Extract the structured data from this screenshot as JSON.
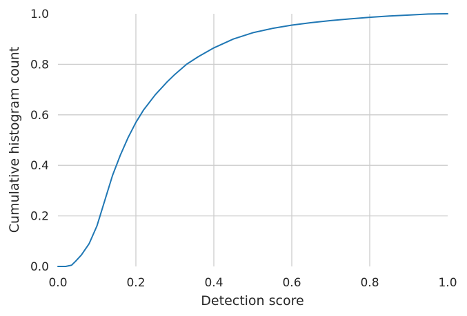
{
  "chart_data": {
    "type": "line",
    "xlabel": "Detection score",
    "ylabel": "Cumulative histogram count",
    "xlim": [
      0.0,
      1.0
    ],
    "ylim": [
      0.0,
      1.0
    ],
    "xticks": [
      0.0,
      0.2,
      0.4,
      0.6,
      0.8,
      1.0
    ],
    "yticks": [
      0.0,
      0.2,
      0.4,
      0.6,
      0.8,
      1.0
    ],
    "xtick_labels": [
      "0.0",
      "0.2",
      "0.4",
      "0.6",
      "0.8",
      "1.0"
    ],
    "ytick_labels": [
      "0.0",
      "0.2",
      "0.4",
      "0.6",
      "0.8",
      "1.0"
    ],
    "grid": true,
    "series_color": "#1f77b4",
    "series": [
      {
        "x": [
          0.0,
          0.02,
          0.035,
          0.045,
          0.06,
          0.08,
          0.1,
          0.12,
          0.14,
          0.16,
          0.18,
          0.2,
          0.22,
          0.25,
          0.28,
          0.3,
          0.33,
          0.36,
          0.4,
          0.45,
          0.5,
          0.55,
          0.6,
          0.65,
          0.7,
          0.75,
          0.8,
          0.85,
          0.9,
          0.95,
          1.0
        ],
        "y": [
          0.0,
          0.0,
          0.005,
          0.02,
          0.045,
          0.09,
          0.16,
          0.26,
          0.36,
          0.44,
          0.51,
          0.57,
          0.62,
          0.68,
          0.73,
          0.76,
          0.8,
          0.83,
          0.865,
          0.9,
          0.925,
          0.942,
          0.955,
          0.965,
          0.973,
          0.98,
          0.986,
          0.991,
          0.995,
          0.999,
          1.0
        ]
      }
    ]
  }
}
